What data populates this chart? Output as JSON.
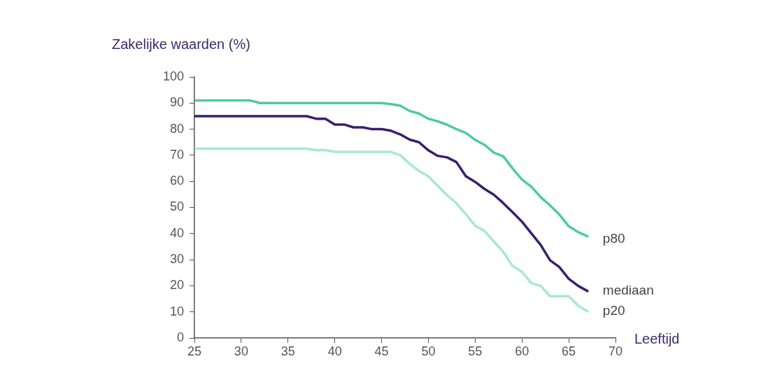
{
  "chart_data": {
    "type": "line",
    "xlabel": "Leeftijd",
    "ylabel": "Zakelijke waarden (%)",
    "xlim": [
      25,
      70
    ],
    "xticks": [
      25,
      30,
      35,
      40,
      45,
      50,
      55,
      60,
      65,
      70
    ],
    "ylim": [
      0,
      100
    ],
    "yticks": [
      0,
      10,
      20,
      30,
      40,
      50,
      60,
      70,
      80,
      90,
      100
    ],
    "grid": false,
    "legend": false,
    "marker": "none",
    "line_style": "solid",
    "x": [
      25,
      26,
      27,
      28,
      29,
      30,
      31,
      32,
      33,
      34,
      35,
      36,
      37,
      38,
      39,
      40,
      41,
      42,
      43,
      44,
      45,
      46,
      47,
      48,
      49,
      50,
      51,
      52,
      53,
      54,
      55,
      56,
      57,
      58,
      59,
      60,
      61,
      62,
      63,
      64,
      65,
      66,
      67
    ],
    "series": [
      {
        "name": "p80",
        "color": "#4fc9a4",
        "values": [
          91,
          91,
          91,
          91,
          91,
          91,
          91,
          90,
          90,
          90,
          90,
          90,
          90,
          90,
          90,
          90,
          90,
          90,
          90,
          90,
          90,
          89.6,
          89,
          87,
          86,
          84,
          83,
          81.7,
          80,
          78.6,
          75.9,
          74,
          71,
          69.6,
          65,
          60.7,
          58,
          54,
          50.8,
          47.3,
          42.8,
          40.6,
          39
        ]
      },
      {
        "name": "mediaan",
        "color": "#3b1f6b",
        "values": [
          85,
          85,
          85,
          85,
          85,
          85,
          85,
          85,
          85,
          85,
          85,
          85,
          85,
          84,
          84,
          81.8,
          81.8,
          80.7,
          80.7,
          80,
          80,
          79.4,
          78,
          76,
          75,
          71.9,
          69.8,
          69.2,
          67.4,
          62,
          59.8,
          57.1,
          54.9,
          51.7,
          48.2,
          44.6,
          40.1,
          35.7,
          29.8,
          27.2,
          22.7,
          20,
          18
        ]
      },
      {
        "name": "p20",
        "color": "#a6e8d5",
        "values": [
          72.5,
          72.5,
          72.5,
          72.5,
          72.5,
          72.5,
          72.5,
          72.5,
          72.5,
          72.5,
          72.5,
          72.5,
          72.5,
          72,
          72,
          71.3,
          71.3,
          71.3,
          71.3,
          71.3,
          71.3,
          71.3,
          70,
          66.8,
          64,
          61.9,
          58.3,
          54.7,
          51.6,
          47.5,
          43,
          41,
          37,
          33,
          27.6,
          25.4,
          21,
          20,
          16,
          16,
          16,
          12.4,
          10.2
        ]
      }
    ]
  }
}
